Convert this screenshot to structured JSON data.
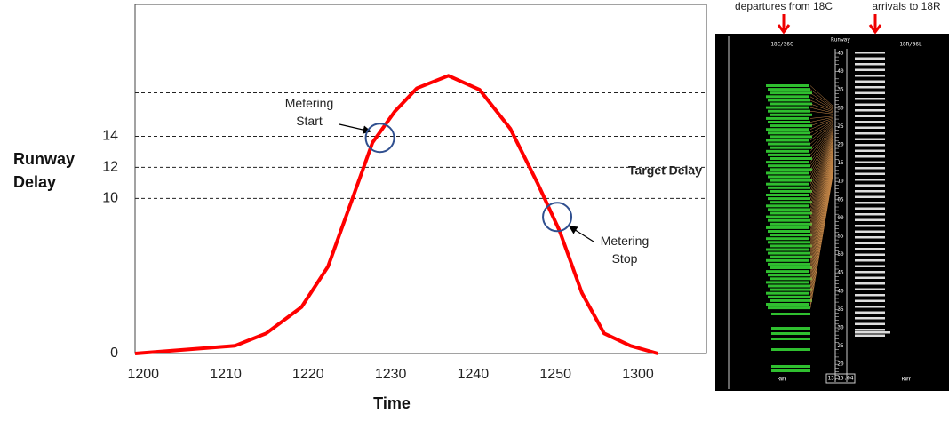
{
  "chart_data": {
    "type": "line",
    "y_label": "Runway Delay",
    "x_label": "Time",
    "x": [
      -1,
      11.1,
      14.9,
      19.2,
      22.4,
      25.1,
      27.8,
      30.5,
      33.2,
      37.0,
      40.8,
      44.5,
      47.8,
      50.5,
      53.2,
      55.9,
      59.1,
      62.4
    ],
    "series": [
      {
        "color": "#ff0000",
        "values": [
          0,
          0.5,
          1.3,
          3.0,
          5.6,
          9.6,
          13.6,
          15.6,
          17.1,
          17.9,
          17.0,
          14.5,
          11.0,
          7.9,
          3.9,
          1.3,
          0.5,
          0
        ]
      }
    ],
    "xlim": [
      -1,
      68.3
    ],
    "xticks": [
      {
        "value": 0,
        "label": "1200"
      },
      {
        "value": 10,
        "label": "1210"
      },
      {
        "value": 20,
        "label": "1220"
      },
      {
        "value": 30,
        "label": "1230"
      },
      {
        "value": 40,
        "label": "1240"
      },
      {
        "value": 50,
        "label": "1250"
      },
      {
        "value": 60,
        "label": "1300"
      }
    ],
    "ylim": [
      0,
      22.5
    ],
    "yticks": [
      0,
      10,
      12,
      14
    ],
    "reference_lines": [
      10,
      12,
      14,
      16.8
    ],
    "target_label": "Target Delay",
    "markers": [
      {
        "x": 28.7,
        "y": 13.9,
        "label": "Metering\nStart"
      },
      {
        "x": 50.2,
        "y": 8.8,
        "label": "Metering\nStop"
      }
    ]
  },
  "timeline_panel": {
    "caption_left": "departures from 18C",
    "caption_right": "arrivals to 18R",
    "header_left": "18C/36C",
    "header_center": "Runway",
    "header_right": "18R/36L",
    "footer_left": "RWY",
    "footer_center": "13:15:04",
    "footer_right": "RWY",
    "scale_labels": [
      "45",
      "40",
      "35",
      "30",
      "25",
      "20",
      "15",
      "10",
      "05",
      "00",
      "55",
      "50",
      "45",
      "40",
      "35",
      "30",
      "25",
      "20"
    ]
  }
}
